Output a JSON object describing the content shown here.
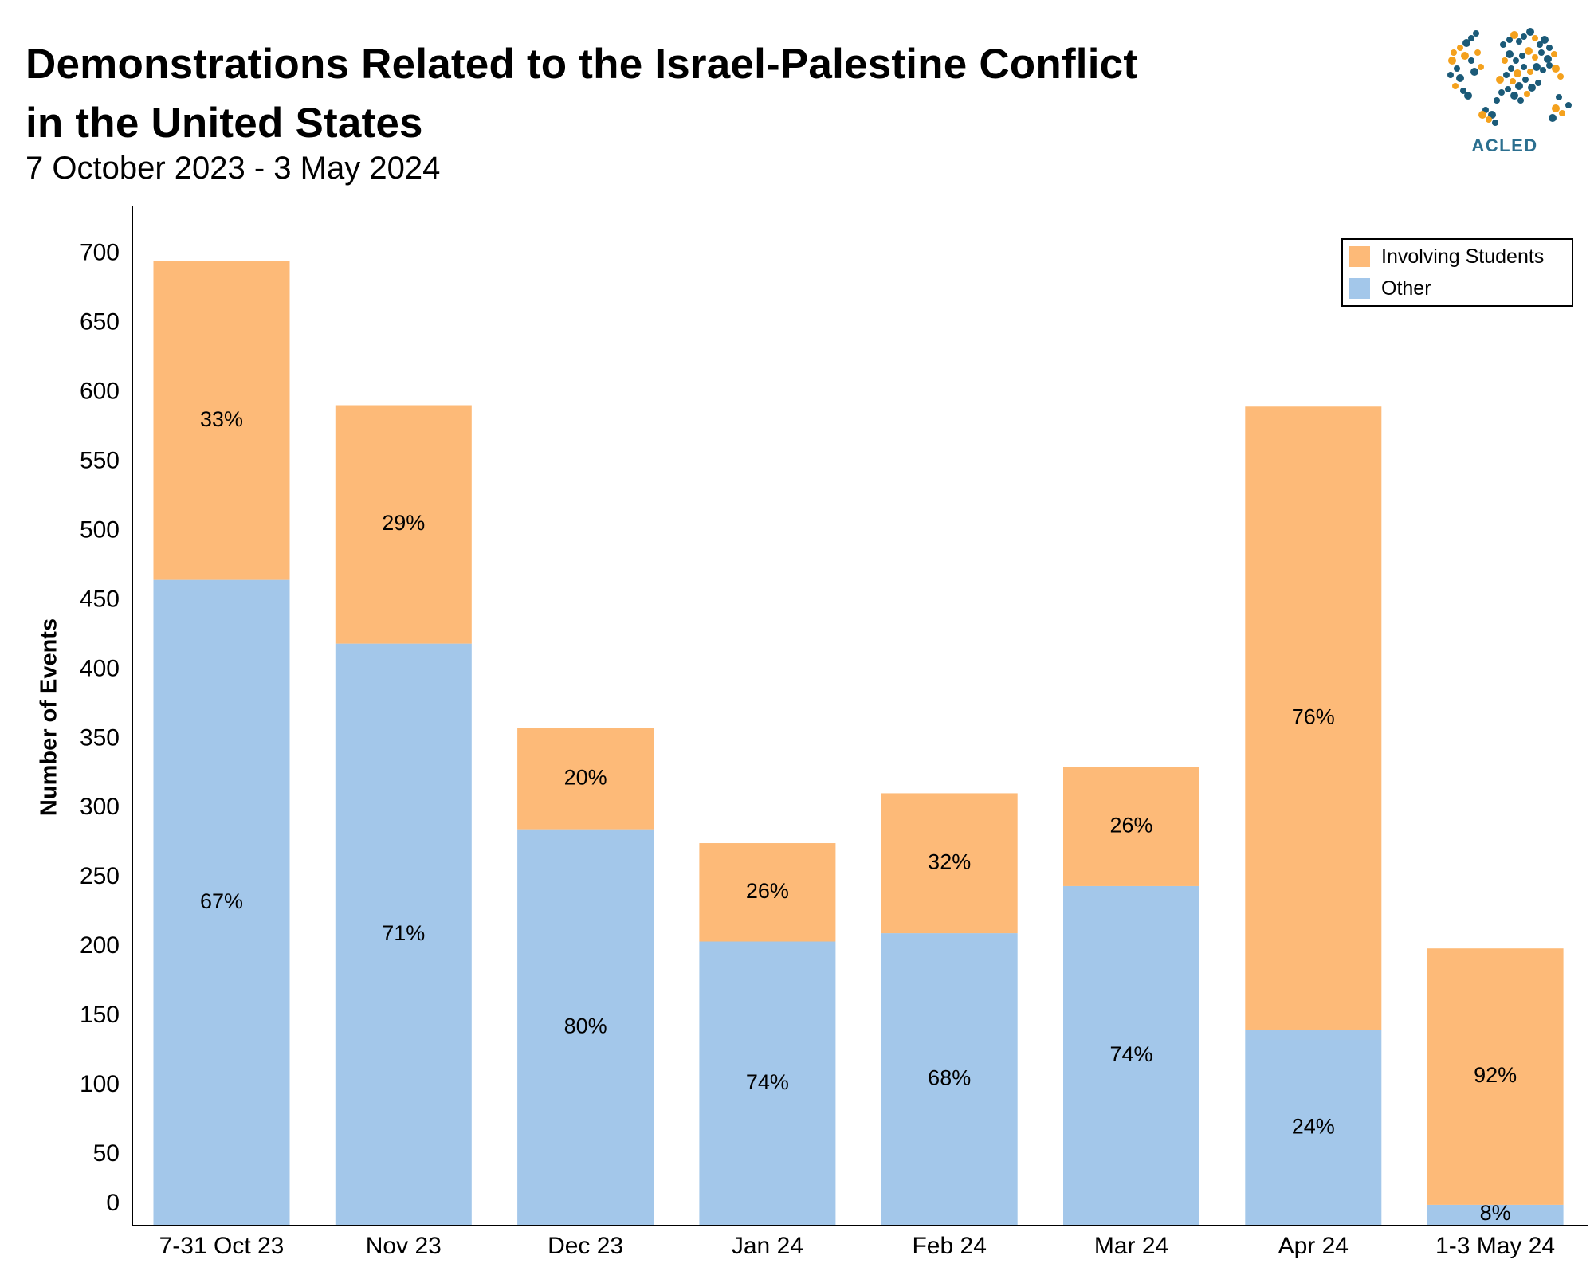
{
  "title": {
    "line1": "Demonstrations Related to the Israel-Palestine Conflict",
    "line2": "in the United States"
  },
  "subtitle": "7 October 2023 - 3 May 2024",
  "logo": {
    "text": "ACLED",
    "icon": "world-map-dots-icon"
  },
  "colors": {
    "students": "#FDBA78",
    "other": "#A3C7EA",
    "axis": "#000000",
    "logo_blue": "#1b5a78",
    "logo_orange": "#f4a11d"
  },
  "chart_data": {
    "type": "bar",
    "stacked": true,
    "title": "Demonstrations Related to the Israel-Palestine Conflict in the United States",
    "subtitle": "7 October 2023 - 3 May 2024",
    "xlabel": "",
    "ylabel": "Number of Events",
    "ylim": [
      0,
      730
    ],
    "yticks": [
      0,
      50,
      100,
      150,
      200,
      250,
      300,
      350,
      400,
      450,
      500,
      550,
      600,
      650,
      700
    ],
    "grid": false,
    "legend_position": "top-right",
    "categories": [
      "7-31 Oct 23",
      "Nov 23",
      "Dec 23",
      "Jan 24",
      "Feb 24",
      "Mar 24",
      "Apr 24",
      "1-3 May 24"
    ],
    "series": [
      {
        "name": "Other",
        "color": "#A3C7EA",
        "values": [
          466,
          420,
          286,
          205,
          211,
          245,
          141,
          15
        ],
        "labels": [
          "67%",
          "71%",
          "80%",
          "74%",
          "68%",
          "74%",
          "24%",
          "8%"
        ]
      },
      {
        "name": "Involving Students",
        "color": "#FDBA78",
        "values": [
          230,
          172,
          73,
          71,
          101,
          86,
          450,
          185
        ],
        "labels": [
          "33%",
          "29%",
          "20%",
          "26%",
          "32%",
          "26%",
          "76%",
          "92%"
        ]
      }
    ],
    "legend": [
      "Involving Students",
      "Other"
    ]
  }
}
